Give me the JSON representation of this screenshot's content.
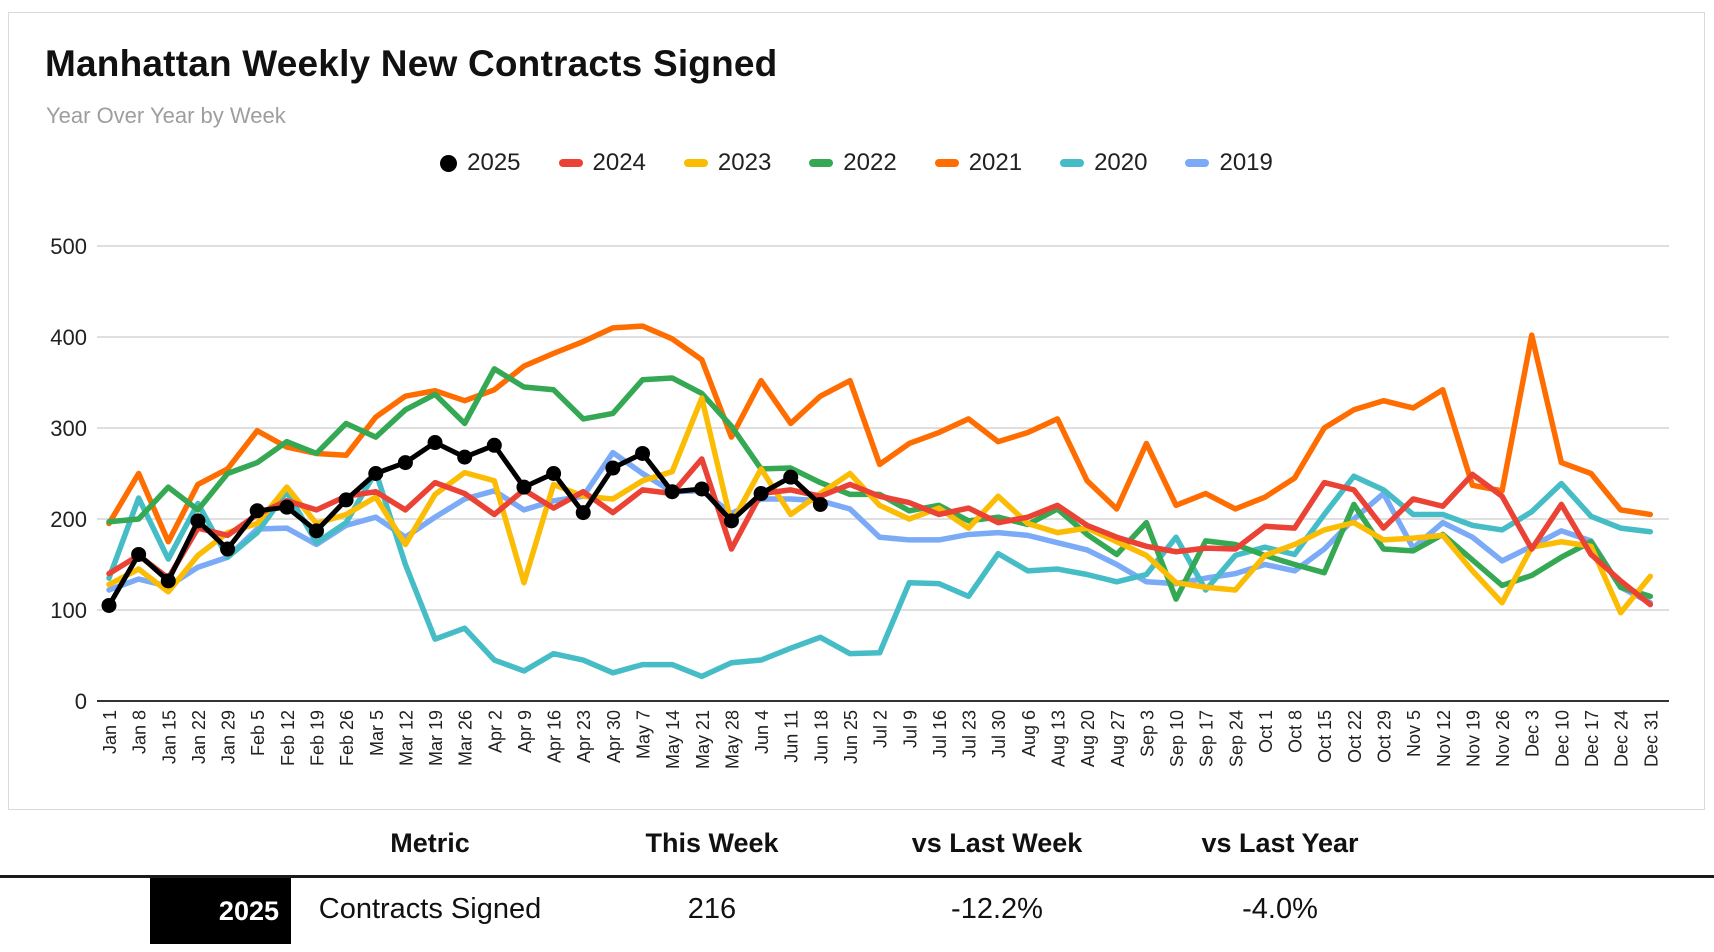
{
  "header": {
    "title": "Manhattan Weekly New Contracts Signed",
    "subtitle": "Year Over Year by Week"
  },
  "colors": {
    "grid": "#cccccc",
    "axis": "#333333",
    "axis_text": "#212121"
  },
  "chart_data": {
    "type": "line",
    "title": "Manhattan Weekly New Contracts Signed",
    "subtitle": "Year Over Year by Week",
    "xlabel": "",
    "ylabel": "",
    "ylim": [
      0,
      500
    ],
    "yticks": [
      0,
      100,
      200,
      300,
      400,
      500
    ],
    "grid": true,
    "legend_position": "top",
    "categories": [
      "Jan 1",
      "Jan 8",
      "Jan 15",
      "Jan 22",
      "Jan 29",
      "Feb 5",
      "Feb 12",
      "Feb 19",
      "Feb 26",
      "Mar 5",
      "Mar 12",
      "Mar 19",
      "Mar 26",
      "Apr 2",
      "Apr 9",
      "Apr 16",
      "Apr 23",
      "Apr 30",
      "May 7",
      "May 14",
      "May 21",
      "May 28",
      "Jun 4",
      "Jun 11",
      "Jun 18",
      "Jun 25",
      "Jul 2",
      "Jul 9",
      "Jul 16",
      "Jul 23",
      "Jul 30",
      "Aug 6",
      "Aug 13",
      "Aug 20",
      "Aug 27",
      "Sep 3",
      "Sep 10",
      "Sep 17",
      "Sep 24",
      "Oct 1",
      "Oct 8",
      "Oct 15",
      "Oct 22",
      "Oct 29",
      "Nov 5",
      "Nov 12",
      "Nov 19",
      "Nov 26",
      "Dec 3",
      "Dec 10",
      "Dec 17",
      "Dec 24",
      "Dec 31"
    ],
    "series": [
      {
        "name": "2025",
        "color": "#000000",
        "style": "line-with-dots",
        "values": [
          105,
          161,
          132,
          198,
          167,
          209,
          213,
          187,
          221,
          250,
          262,
          284,
          268,
          281,
          235,
          250,
          207,
          256,
          272,
          230,
          233,
          198,
          228,
          246,
          216
        ]
      },
      {
        "name": "2024",
        "color": "#EA4335",
        "style": "line",
        "values": [
          140,
          160,
          135,
          190,
          182,
          205,
          220,
          210,
          225,
          230,
          210,
          240,
          228,
          205,
          232,
          212,
          230,
          207,
          232,
          228,
          266,
          167,
          228,
          232,
          225,
          238,
          225,
          218,
          205,
          212,
          196,
          202,
          215,
          193,
          180,
          170,
          164,
          168,
          167,
          192,
          190,
          240,
          232,
          190,
          222,
          214,
          249,
          225,
          167,
          216,
          161,
          132,
          106
        ]
      },
      {
        "name": "2023",
        "color": "#FBBC04",
        "style": "line",
        "values": [
          128,
          145,
          120,
          160,
          185,
          195,
          235,
          195,
          205,
          224,
          172,
          227,
          251,
          242,
          130,
          238,
          225,
          222,
          242,
          252,
          333,
          195,
          255,
          205,
          228,
          250,
          215,
          200,
          212,
          190,
          225,
          195,
          185,
          190,
          175,
          160,
          130,
          125,
          122,
          160,
          172,
          188,
          196,
          177,
          179,
          182,
          143,
          108,
          169,
          175,
          170,
          97,
          137
        ]
      },
      {
        "name": "2022",
        "color": "#34A853",
        "style": "line",
        "values": [
          197,
          200,
          235,
          210,
          250,
          262,
          285,
          272,
          305,
          290,
          320,
          337,
          305,
          365,
          345,
          342,
          310,
          316,
          353,
          355,
          338,
          302,
          255,
          256,
          240,
          227,
          227,
          209,
          215,
          198,
          202,
          194,
          211,
          183,
          161,
          196,
          112,
          176,
          172,
          160,
          150,
          141,
          216,
          167,
          165,
          183,
          155,
          127,
          138,
          158,
          175,
          125,
          115
        ]
      },
      {
        "name": "2021",
        "color": "#FF6D01",
        "style": "line",
        "values": [
          195,
          250,
          175,
          238,
          255,
          297,
          279,
          272,
          270,
          312,
          335,
          341,
          330,
          342,
          368,
          382,
          395,
          410,
          412,
          398,
          375,
          290,
          352,
          305,
          335,
          352,
          260,
          283,
          295,
          310,
          285,
          295,
          310,
          242,
          211,
          283,
          215,
          228,
          211,
          224,
          245,
          300,
          320,
          330,
          322,
          342,
          237,
          231,
          402,
          262,
          250,
          210,
          205
        ]
      },
      {
        "name": "2020",
        "color": "#46BDC6",
        "style": "line",
        "values": [
          135,
          223,
          156,
          217,
          158,
          185,
          230,
          174,
          196,
          252,
          150,
          68,
          80,
          45,
          33,
          52,
          45,
          31,
          40,
          40,
          27,
          42,
          45,
          58,
          70,
          52,
          53,
          130,
          129,
          115,
          162,
          143,
          145,
          139,
          131,
          139,
          180,
          122,
          160,
          169,
          161,
          205,
          247,
          232,
          205,
          205,
          193,
          188,
          208,
          239,
          203,
          190,
          186
        ]
      },
      {
        "name": "2019",
        "color": "#7BAAF7",
        "style": "line",
        "values": [
          122,
          134,
          126,
          147,
          158,
          189,
          190,
          172,
          193,
          202,
          180,
          202,
          222,
          231,
          210,
          220,
          225,
          273,
          250,
          230,
          231,
          206,
          222,
          222,
          220,
          211,
          180,
          177,
          177,
          183,
          185,
          182,
          174,
          166,
          150,
          131,
          129,
          135,
          140,
          150,
          143,
          167,
          200,
          228,
          168,
          196,
          180,
          154,
          170,
          187,
          176,
          125,
          108
        ]
      }
    ]
  },
  "table": {
    "headers": [
      "Metric",
      "This Week",
      "vs Last Week",
      "vs Last Year"
    ],
    "row": {
      "year": "2025",
      "metric": "Contracts Signed",
      "this_week": "216",
      "vs_last_week": "-12.2%",
      "vs_last_year": "-4.0%"
    }
  }
}
